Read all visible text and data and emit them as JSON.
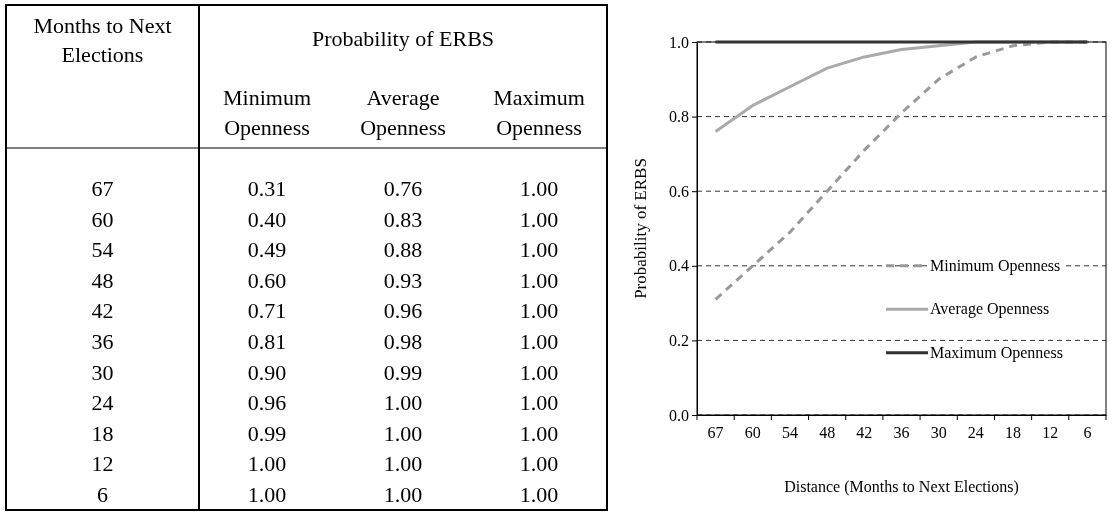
{
  "chart_data": {
    "type": "line",
    "xlabel": "Distance (Months to Next Elections)",
    "ylabel": "Probability of ERBS",
    "categories": [
      "67",
      "60",
      "54",
      "48",
      "42",
      "36",
      "30",
      "24",
      "18",
      "12",
      "6"
    ],
    "series": [
      {
        "name": "Minimum Openness",
        "color": "#999999",
        "line_style": "dashed",
        "values": [
          0.31,
          0.4,
          0.49,
          0.6,
          0.71,
          0.81,
          0.9,
          0.96,
          0.99,
          1.0,
          1.0
        ]
      },
      {
        "name": "Average Openness",
        "color": "#aaaaaa",
        "line_style": "solid",
        "values": [
          0.76,
          0.83,
          0.88,
          0.93,
          0.96,
          0.98,
          0.99,
          1.0,
          1.0,
          1.0,
          1.0
        ]
      },
      {
        "name": "Maximum Openness",
        "color": "#333333",
        "line_style": "solid",
        "values": [
          1.0,
          1.0,
          1.0,
          1.0,
          1.0,
          1.0,
          1.0,
          1.0,
          1.0,
          1.0,
          1.0
        ]
      }
    ],
    "ylim": [
      0,
      1
    ],
    "yticks": [
      {
        "value": 0,
        "label": "0.0"
      },
      {
        "value": 0.2,
        "label": "0.2"
      },
      {
        "value": 0.4,
        "label": "0.4"
      },
      {
        "value": 0.6,
        "label": "0.6"
      },
      {
        "value": 0.8,
        "label": "0.8"
      },
      {
        "value": 1,
        "label": "1.0"
      }
    ],
    "grid": "y",
    "legend": "right",
    "marker": "none",
    "annotations": [
      "Months to Next Elections",
      "Probability of ERBS",
      "0.31",
      "0.76",
      "1.00",
      "0.40",
      "0.83",
      "1.00",
      "0.49",
      "0.88",
      "1.00",
      "0.60",
      "0.93",
      "1.00",
      "0.71",
      "0.96",
      "1.00",
      "0.81",
      "0.98",
      "1.00",
      "0.90",
      "0.99",
      "1.00",
      "0.96",
      "1.00",
      "1.00",
      "0.99",
      "1.00",
      "1.00",
      "1.00",
      "1.00",
      "1.00",
      "1.00",
      "1.00",
      "1.00"
    ]
  }
}
